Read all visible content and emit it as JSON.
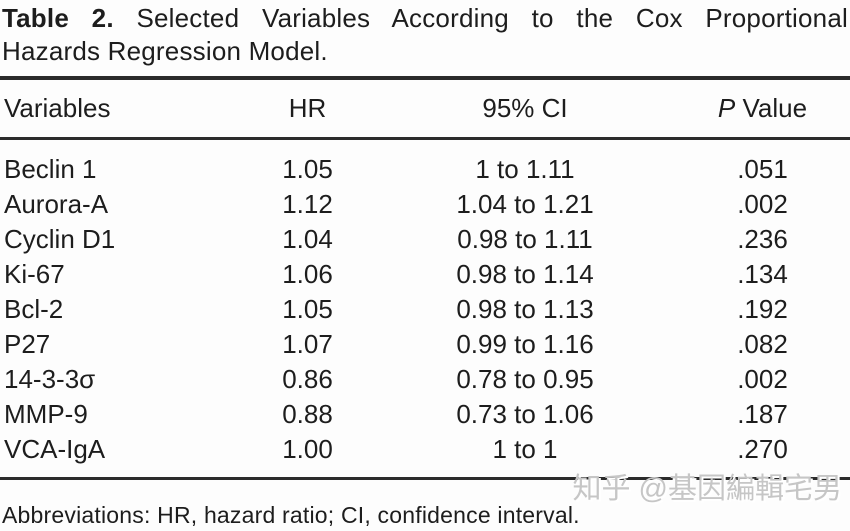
{
  "title": {
    "bold": "Table 2.",
    "line1_rest": "Selected Variables According to the Cox Proportional",
    "line2": "Hazards Regression Model."
  },
  "table": {
    "headers": {
      "variables": "Variables",
      "hr": "HR",
      "ci": "95% CI",
      "p_italic": "P",
      "p_rest": " Value"
    },
    "rows": [
      {
        "variable": "Beclin 1",
        "hr": "1.05",
        "ci": "1 to 1.11",
        "p": ".051"
      },
      {
        "variable": "Aurora-A",
        "hr": "1.12",
        "ci": "1.04 to 1.21",
        "p": ".002"
      },
      {
        "variable": "Cyclin D1",
        "hr": "1.04",
        "ci": "0.98 to 1.11",
        "p": ".236"
      },
      {
        "variable": "Ki-67",
        "hr": "1.06",
        "ci": "0.98 to 1.14",
        "p": ".134"
      },
      {
        "variable": "Bcl-2",
        "hr": "1.05",
        "ci": "0.98 to 1.13",
        "p": ".192"
      },
      {
        "variable": "P27",
        "hr": "1.07",
        "ci": "0.99 to 1.16",
        "p": ".082"
      },
      {
        "variable": "14-3-3σ",
        "hr": "0.86",
        "ci": "0.78 to 0.95",
        "p": ".002"
      },
      {
        "variable": "MMP-9",
        "hr": "0.88",
        "ci": "0.73 to 1.06",
        "p": ".187"
      },
      {
        "variable": "VCA-IgA",
        "hr": "1.00",
        "ci": "1 to 1",
        "p": ".270"
      }
    ]
  },
  "footnote": "Abbreviations: HR, hazard ratio; CI, confidence interval.",
  "watermark": "知乎 @基因編輯宅男",
  "colors": {
    "text": "#1d1d1d",
    "rule": "#2b2b2b",
    "watermark": "#c6c6c6",
    "background": "#fdfdfd"
  }
}
